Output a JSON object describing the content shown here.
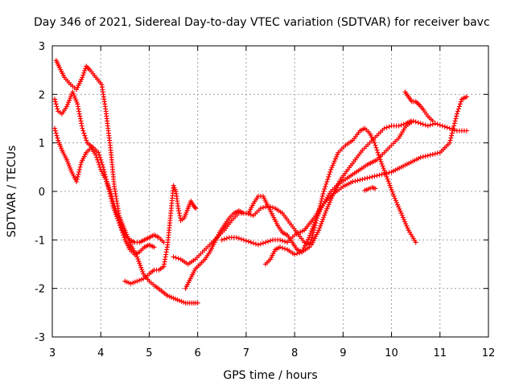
{
  "chart_data": {
    "type": "scatter",
    "title": "Day 346 of 2021, Sidereal Day-to-day VTEC variation (SDTVAR) for receiver bavc",
    "xlabel": "GPS time / hours",
    "ylabel": "SDTVAR / TECUs",
    "xlim": [
      3,
      12
    ],
    "ylim": [
      -3,
      3
    ],
    "xticks": [
      "3",
      "4",
      "5",
      "6",
      "7",
      "8",
      "9",
      "10",
      "11",
      "12"
    ],
    "yticks": [
      "3",
      "2",
      "1",
      "0",
      "-1",
      "-2",
      "-3"
    ],
    "grid": true,
    "marker": "plus",
    "color": "#ff0000",
    "series": [
      {
        "x": [
          3.08,
          3.15,
          3.25,
          3.38,
          3.5,
          3.62,
          3.7,
          3.78,
          3.9,
          4.02,
          4.1,
          4.2,
          4.28,
          4.38,
          4.5,
          4.62,
          4.75,
          4.88,
          5.0,
          5.12,
          5.25,
          5.38,
          5.5,
          5.62,
          5.75,
          5.88,
          6.0
        ],
        "y": [
          2.7,
          2.55,
          2.35,
          2.2,
          2.1,
          2.35,
          2.58,
          2.5,
          2.35,
          2.2,
          1.7,
          0.9,
          0.1,
          -0.5,
          -0.8,
          -1.1,
          -1.35,
          -1.7,
          -1.85,
          -1.95,
          -2.05,
          -2.15,
          -2.2,
          -2.25,
          -2.3,
          -2.3,
          -2.3
        ]
      },
      {
        "x": [
          3.05,
          3.12,
          3.2,
          3.3,
          3.42,
          3.52,
          3.62,
          3.72,
          3.85,
          3.95,
          4.05,
          4.15,
          4.25,
          4.38,
          4.5,
          4.6,
          4.7,
          4.8,
          4.9,
          5.0,
          5.1,
          5.2,
          5.3
        ],
        "y": [
          1.9,
          1.65,
          1.6,
          1.75,
          2.05,
          1.8,
          1.3,
          1.0,
          0.9,
          0.8,
          0.5,
          0.1,
          -0.3,
          -0.65,
          -0.9,
          -1.0,
          -1.05,
          -1.05,
          -1.0,
          -0.95,
          -0.9,
          -0.95,
          -1.05
        ]
      },
      {
        "x": [
          3.05,
          3.12,
          3.2,
          3.3,
          3.4,
          3.5,
          3.6,
          3.7,
          3.8,
          3.9,
          4.0,
          4.1,
          4.2,
          4.3,
          4.4,
          4.5,
          4.6,
          4.7,
          4.8,
          4.9,
          5.0,
          5.1
        ],
        "y": [
          1.3,
          1.05,
          0.85,
          0.65,
          0.4,
          0.2,
          0.6,
          0.8,
          0.9,
          0.75,
          0.45,
          0.25,
          0.0,
          -0.35,
          -0.7,
          -1.0,
          -1.2,
          -1.3,
          -1.25,
          -1.15,
          -1.1,
          -1.15
        ]
      },
      {
        "x": [
          4.5,
          4.62,
          4.75,
          4.88,
          5.0,
          5.1,
          5.2,
          5.3,
          5.38,
          5.45,
          5.5,
          5.55,
          5.6,
          5.65,
          5.72,
          5.8,
          5.86,
          5.92,
          5.96
        ],
        "y": [
          -1.85,
          -1.9,
          -1.85,
          -1.8,
          -1.7,
          -1.62,
          -1.62,
          -1.55,
          -1.1,
          -0.4,
          0.12,
          0.0,
          -0.35,
          -0.6,
          -0.55,
          -0.35,
          -0.2,
          -0.3,
          -0.35
        ]
      },
      {
        "x": [
          5.5,
          5.65,
          5.8,
          5.95,
          6.1,
          6.25,
          6.4,
          6.55,
          6.7,
          6.85,
          7.0,
          7.15,
          7.3,
          7.45,
          7.6,
          7.75,
          7.9,
          8.05,
          8.2,
          8.35,
          8.5,
          8.65,
          8.8,
          8.95,
          9.1,
          9.25,
          9.4,
          9.55,
          9.7,
          9.85,
          10.0,
          10.15,
          10.3,
          10.4
        ],
        "y": [
          -1.35,
          -1.4,
          -1.5,
          -1.4,
          -1.25,
          -1.1,
          -0.95,
          -0.8,
          -0.6,
          -0.45,
          -0.45,
          -0.5,
          -0.35,
          -0.3,
          -0.35,
          -0.45,
          -0.65,
          -0.85,
          -1.05,
          -1.1,
          -0.8,
          -0.4,
          -0.05,
          0.25,
          0.45,
          0.65,
          0.85,
          1.0,
          1.15,
          1.3,
          1.35,
          1.35,
          1.4,
          1.45
        ]
      },
      {
        "x": [
          5.75,
          5.85,
          5.95,
          6.05,
          6.15,
          6.25,
          6.35,
          6.45,
          6.55,
          6.65,
          6.75,
          6.85,
          6.95,
          7.05,
          7.15,
          7.25,
          7.35,
          7.45,
          7.55,
          7.65,
          7.75,
          7.85,
          7.95,
          8.05,
          8.15,
          8.3,
          8.45,
          8.6,
          8.75,
          8.9,
          9.05,
          9.2,
          9.35,
          9.45,
          9.55,
          9.65,
          9.75,
          9.9,
          10.05,
          10.2,
          10.35,
          10.5
        ],
        "y": [
          -2.0,
          -1.8,
          -1.6,
          -1.5,
          -1.4,
          -1.25,
          -1.05,
          -0.85,
          -0.7,
          -0.55,
          -0.45,
          -0.4,
          -0.45,
          -0.45,
          -0.25,
          -0.1,
          -0.1,
          -0.3,
          -0.5,
          -0.7,
          -0.85,
          -0.9,
          -1.05,
          -1.2,
          -1.25,
          -1.15,
          -0.6,
          0.0,
          0.45,
          0.8,
          0.95,
          1.05,
          1.25,
          1.3,
          1.2,
          1.0,
          0.7,
          0.3,
          -0.1,
          -0.45,
          -0.8,
          -1.05
        ]
      },
      {
        "x": [
          6.5,
          6.65,
          6.8,
          6.95,
          7.1,
          7.25,
          7.4,
          7.55,
          7.7,
          7.85,
          8.0,
          8.2,
          8.4,
          8.6,
          8.8,
          9.0,
          9.2,
          9.4,
          9.6,
          9.8,
          10.0,
          10.2,
          10.4,
          10.6,
          10.8,
          11.0,
          11.2,
          11.35,
          11.45,
          11.55
        ],
        "y": [
          -1.0,
          -0.95,
          -0.95,
          -1.0,
          -1.05,
          -1.1,
          -1.05,
          -1.0,
          -1.0,
          -1.05,
          -0.9,
          -0.8,
          -0.55,
          -0.25,
          -0.05,
          0.1,
          0.2,
          0.25,
          0.3,
          0.35,
          0.4,
          0.5,
          0.6,
          0.7,
          0.75,
          0.8,
          1.0,
          1.6,
          1.9,
          1.95
        ]
      },
      {
        "x": [
          7.4,
          7.5,
          7.6,
          7.7,
          7.85,
          8.0,
          8.15,
          8.3,
          8.45,
          8.6,
          8.75,
          8.9,
          9.05,
          9.2,
          9.35,
          9.5,
          9.6,
          9.7,
          9.85,
          10.0,
          10.15,
          10.3,
          10.45,
          10.6,
          10.75,
          10.9,
          11.05,
          11.2,
          11.35,
          11.5,
          11.55
        ],
        "y": [
          -1.5,
          -1.4,
          -1.2,
          -1.15,
          -1.2,
          -1.3,
          -1.25,
          -0.95,
          -0.55,
          -0.25,
          0.0,
          0.15,
          0.25,
          0.35,
          0.45,
          0.55,
          0.6,
          0.65,
          0.8,
          0.95,
          1.1,
          1.35,
          1.45,
          1.4,
          1.35,
          1.4,
          1.35,
          1.3,
          1.25,
          1.25,
          1.25
        ]
      },
      {
        "x": [
          9.45,
          9.52,
          9.6,
          9.66
        ],
        "y": [
          0.02,
          0.05,
          0.08,
          0.06
        ]
      },
      {
        "x": [
          10.28,
          10.35,
          10.42,
          10.5,
          10.58,
          10.66,
          10.75,
          10.85
        ],
        "y": [
          2.05,
          1.95,
          1.85,
          1.85,
          1.78,
          1.68,
          1.55,
          1.45
        ]
      }
    ]
  }
}
